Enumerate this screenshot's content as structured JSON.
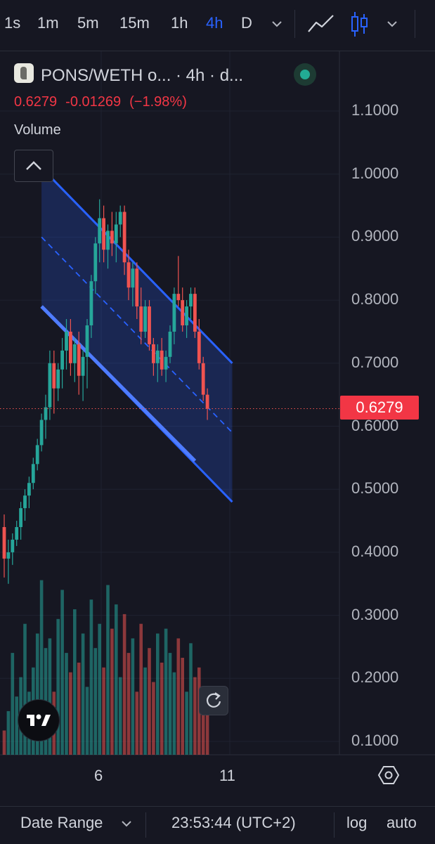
{
  "toolbar": {
    "intervals": [
      "1s",
      "1m",
      "5m",
      "15m",
      "1h",
      "4h",
      "D"
    ],
    "active_interval": "4h"
  },
  "legend": {
    "symbol_title": "PONS/WETH o... · 4h · d...",
    "last_price": "0.6279",
    "change": "-0.01269",
    "change_pct": "(−1.98%)",
    "volume_label": "Volume"
  },
  "colors": {
    "up": "#26a69a",
    "down": "#ef5350",
    "channel": "#2962ff",
    "background": "#161722"
  },
  "chart_data": {
    "type": "candlestick",
    "price_axis": {
      "ticks": [
        "1.1000",
        "1.0000",
        "0.9000",
        "0.8000",
        "0.7000",
        "0.6000",
        "0.5000",
        "0.4000",
        "0.3000",
        "0.2000",
        "0.1000"
      ],
      "range": [
        0.08,
        1.12
      ]
    },
    "time_axis": {
      "ticks": [
        "6",
        "11"
      ]
    },
    "last_price_label": "0.6279",
    "candles": [
      {
        "o": 0.44,
        "h": 0.46,
        "l": 0.36,
        "c": 0.39
      },
      {
        "o": 0.39,
        "h": 0.42,
        "l": 0.35,
        "c": 0.4
      },
      {
        "o": 0.4,
        "h": 0.43,
        "l": 0.38,
        "c": 0.42
      },
      {
        "o": 0.42,
        "h": 0.45,
        "l": 0.41,
        "c": 0.44
      },
      {
        "o": 0.44,
        "h": 0.48,
        "l": 0.42,
        "c": 0.47
      },
      {
        "o": 0.47,
        "h": 0.5,
        "l": 0.45,
        "c": 0.49
      },
      {
        "o": 0.49,
        "h": 0.52,
        "l": 0.47,
        "c": 0.51
      },
      {
        "o": 0.51,
        "h": 0.55,
        "l": 0.5,
        "c": 0.54
      },
      {
        "o": 0.54,
        "h": 0.58,
        "l": 0.53,
        "c": 0.57
      },
      {
        "o": 0.57,
        "h": 0.62,
        "l": 0.56,
        "c": 0.61
      },
      {
        "o": 0.61,
        "h": 0.65,
        "l": 0.58,
        "c": 0.63
      },
      {
        "o": 0.63,
        "h": 0.72,
        "l": 0.61,
        "c": 0.7
      },
      {
        "o": 0.7,
        "h": 0.72,
        "l": 0.62,
        "c": 0.66
      },
      {
        "o": 0.66,
        "h": 0.7,
        "l": 0.64,
        "c": 0.69
      },
      {
        "o": 0.69,
        "h": 0.74,
        "l": 0.66,
        "c": 0.72
      },
      {
        "o": 0.72,
        "h": 0.77,
        "l": 0.69,
        "c": 0.75
      },
      {
        "o": 0.75,
        "h": 0.77,
        "l": 0.68,
        "c": 0.7
      },
      {
        "o": 0.7,
        "h": 0.74,
        "l": 0.67,
        "c": 0.73
      },
      {
        "o": 0.73,
        "h": 0.75,
        "l": 0.65,
        "c": 0.68
      },
      {
        "o": 0.68,
        "h": 0.72,
        "l": 0.64,
        "c": 0.71
      },
      {
        "o": 0.71,
        "h": 0.77,
        "l": 0.66,
        "c": 0.76
      },
      {
        "o": 0.76,
        "h": 0.84,
        "l": 0.74,
        "c": 0.83
      },
      {
        "o": 0.83,
        "h": 0.9,
        "l": 0.81,
        "c": 0.89
      },
      {
        "o": 0.89,
        "h": 0.96,
        "l": 0.86,
        "c": 0.93
      },
      {
        "o": 0.93,
        "h": 0.95,
        "l": 0.86,
        "c": 0.88
      },
      {
        "o": 0.88,
        "h": 0.92,
        "l": 0.85,
        "c": 0.91
      },
      {
        "o": 0.91,
        "h": 0.94,
        "l": 0.87,
        "c": 0.89
      },
      {
        "o": 0.89,
        "h": 0.94,
        "l": 0.86,
        "c": 0.92
      },
      {
        "o": 0.92,
        "h": 0.95,
        "l": 0.9,
        "c": 0.94
      },
      {
        "o": 0.94,
        "h": 0.95,
        "l": 0.84,
        "c": 0.86
      },
      {
        "o": 0.86,
        "h": 0.88,
        "l": 0.8,
        "c": 0.82
      },
      {
        "o": 0.82,
        "h": 0.86,
        "l": 0.79,
        "c": 0.85
      },
      {
        "o": 0.85,
        "h": 0.86,
        "l": 0.77,
        "c": 0.79
      },
      {
        "o": 0.79,
        "h": 0.82,
        "l": 0.73,
        "c": 0.75
      },
      {
        "o": 0.75,
        "h": 0.8,
        "l": 0.74,
        "c": 0.79
      },
      {
        "o": 0.79,
        "h": 0.8,
        "l": 0.72,
        "c": 0.73
      },
      {
        "o": 0.73,
        "h": 0.74,
        "l": 0.68,
        "c": 0.7
      },
      {
        "o": 0.7,
        "h": 0.73,
        "l": 0.67,
        "c": 0.72
      },
      {
        "o": 0.72,
        "h": 0.74,
        "l": 0.68,
        "c": 0.69
      },
      {
        "o": 0.69,
        "h": 0.72,
        "l": 0.67,
        "c": 0.71
      },
      {
        "o": 0.71,
        "h": 0.76,
        "l": 0.7,
        "c": 0.75
      },
      {
        "o": 0.75,
        "h": 0.82,
        "l": 0.73,
        "c": 0.81
      },
      {
        "o": 0.81,
        "h": 0.87,
        "l": 0.79,
        "c": 0.8
      },
      {
        "o": 0.8,
        "h": 0.82,
        "l": 0.75,
        "c": 0.76
      },
      {
        "o": 0.76,
        "h": 0.8,
        "l": 0.74,
        "c": 0.79
      },
      {
        "o": 0.79,
        "h": 0.82,
        "l": 0.77,
        "c": 0.81
      },
      {
        "o": 0.81,
        "h": 0.82,
        "l": 0.74,
        "c": 0.75
      },
      {
        "o": 0.75,
        "h": 0.77,
        "l": 0.69,
        "c": 0.7
      },
      {
        "o": 0.7,
        "h": 0.71,
        "l": 0.64,
        "c": 0.65
      },
      {
        "o": 0.65,
        "h": 0.66,
        "l": 0.61,
        "c": 0.6279
      }
    ],
    "volume": [
      0.05,
      0.09,
      0.21,
      0.12,
      0.16,
      0.27,
      0.13,
      0.18,
      0.25,
      0.36,
      0.22,
      0.24,
      0.13,
      0.28,
      0.34,
      0.21,
      0.17,
      0.3,
      0.19,
      0.25,
      0.14,
      0.32,
      0.22,
      0.27,
      0.18,
      0.35,
      0.26,
      0.31,
      0.16,
      0.29,
      0.21,
      0.24,
      0.13,
      0.27,
      0.18,
      0.22,
      0.15,
      0.25,
      0.19,
      0.26,
      0.21,
      0.17,
      0.24,
      0.2,
      0.13,
      0.23,
      0.16,
      0.18,
      0.14,
      0.1
    ],
    "channel": {
      "upper": [
        {
          "i": 9,
          "p": 1.01
        },
        {
          "i": 55,
          "p": 0.7
        }
      ],
      "middle": [
        {
          "i": 9,
          "p": 0.9
        },
        {
          "i": 55,
          "p": 0.59
        }
      ],
      "lower": [
        {
          "i": 9,
          "p": 0.79
        },
        {
          "i": 55,
          "p": 0.48
        }
      ],
      "highlight": [
        {
          "i": 9,
          "p": 0.79
        },
        {
          "i": 46,
          "p": 0.545
        }
      ]
    }
  },
  "bottom": {
    "date_range": "Date Range",
    "clock": "23:53:44 (UTC+2)",
    "log": "log",
    "auto": "auto"
  }
}
